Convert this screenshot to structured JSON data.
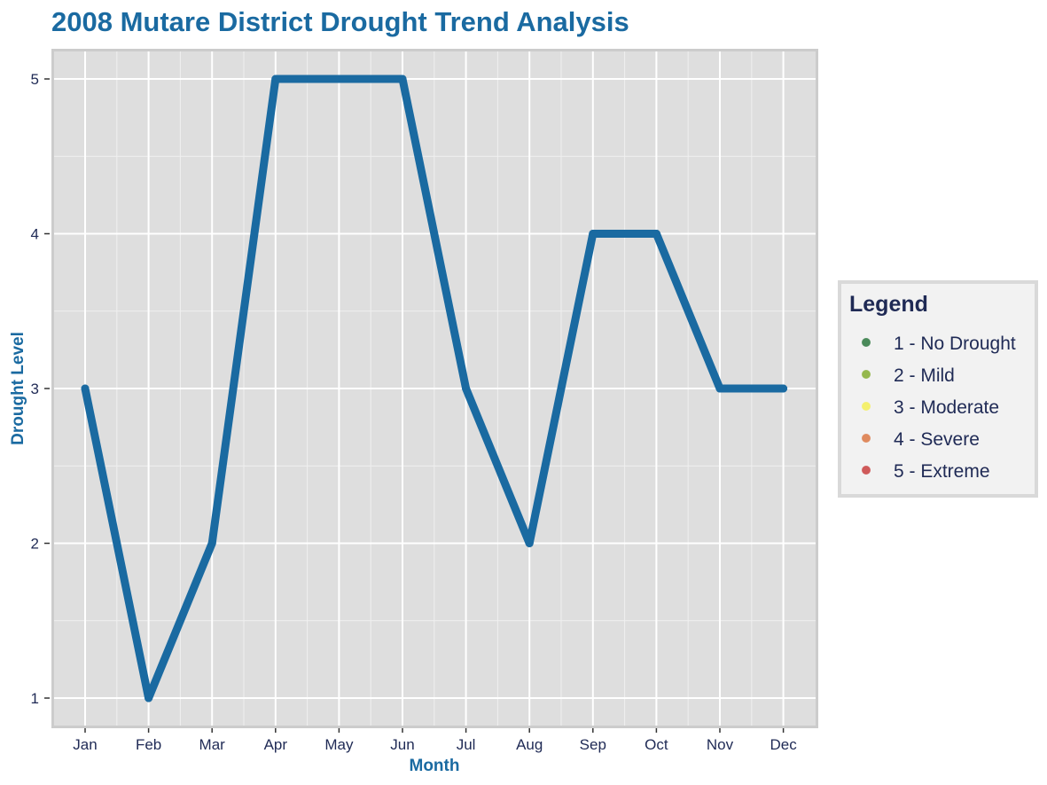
{
  "chart_data": {
    "type": "line",
    "title": "2008 Mutare District Drought Trend Analysis",
    "xlabel": "Month",
    "ylabel": "Drought Level",
    "categories": [
      "Jan",
      "Feb",
      "Mar",
      "Apr",
      "May",
      "Jun",
      "Jul",
      "Aug",
      "Sep",
      "Oct",
      "Nov",
      "Dec"
    ],
    "values": [
      3,
      1,
      2,
      5,
      5,
      5,
      3,
      2,
      4,
      4,
      3,
      3
    ],
    "ylim": [
      1,
      5
    ],
    "yticks": [
      1,
      2,
      3,
      4,
      5
    ],
    "grid": true,
    "line_color": "#1a6aa1",
    "panel_background": "#dedede",
    "legend": {
      "title": "Legend",
      "placement": "right",
      "items": [
        {
          "label": "1 - No Drought",
          "color": "#4a8a5a"
        },
        {
          "label": "2 - Mild",
          "color": "#95b84e"
        },
        {
          "label": "3 - Moderate",
          "color": "#f4f06e"
        },
        {
          "label": "4 - Severe",
          "color": "#df8a5e"
        },
        {
          "label": "5 - Extreme",
          "color": "#cf5a5a"
        }
      ]
    }
  }
}
